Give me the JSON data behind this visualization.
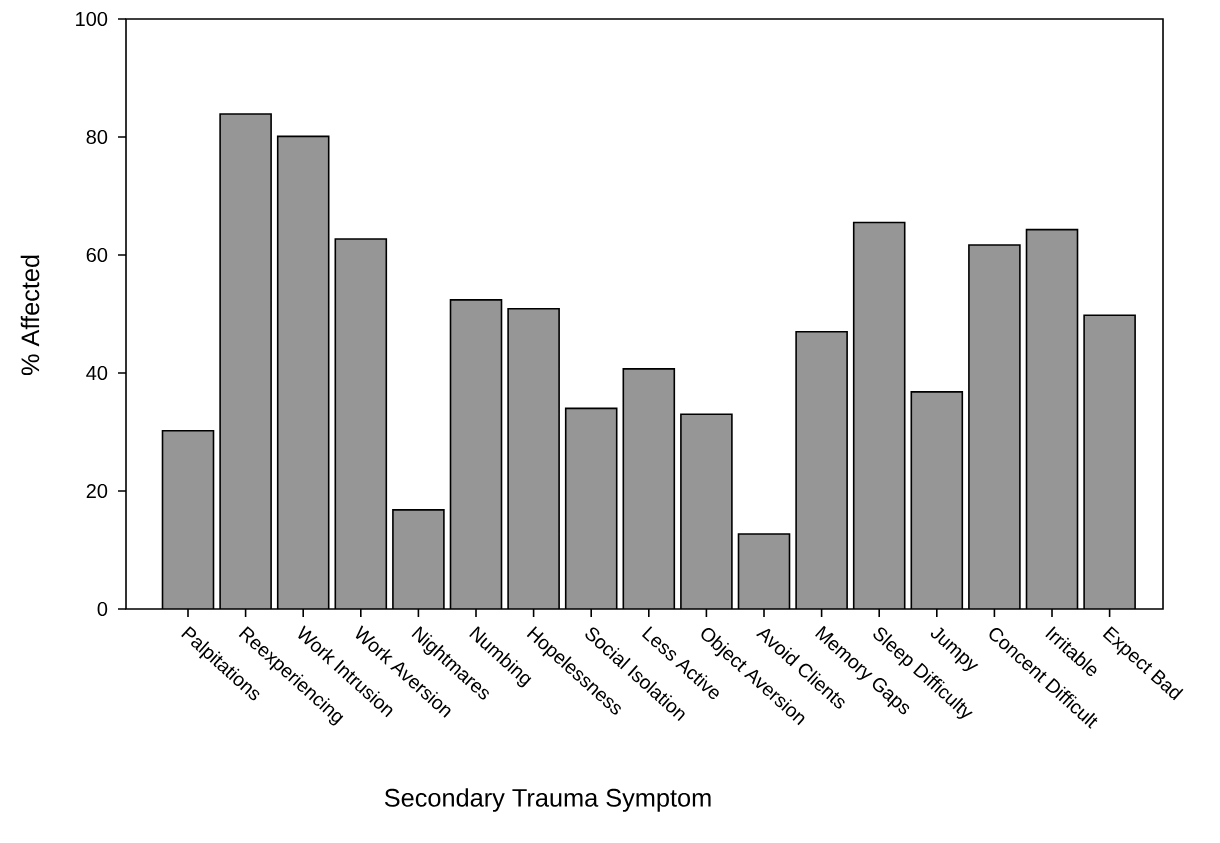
{
  "chart_data": {
    "type": "bar",
    "xlabel": "Secondary Trauma Symptom",
    "ylabel": "% Affected",
    "categories": [
      "Palpitations",
      "Reexperiencing",
      "Work Intrusion",
      "Work Aversion",
      "Nightmares",
      "Numbing",
      "Hopelessness",
      "Social Isolation",
      "Less Active",
      "Object Aversion",
      "Avoid Clients",
      "Memory Gaps",
      "Sleep Difficulty",
      "Jumpy",
      "Concent Difficult",
      "Irritable",
      "Expect Bad"
    ],
    "values": [
      30.2,
      83.9,
      80.1,
      62.7,
      16.8,
      52.4,
      50.9,
      34.0,
      40.7,
      33.0,
      12.7,
      47.0,
      65.5,
      36.8,
      61.7,
      64.3,
      49.8
    ],
    "color": "#969696",
    "ylim": [
      0,
      100
    ],
    "yticks": [
      0,
      20,
      40,
      60,
      80,
      100
    ],
    "grid": false
  }
}
